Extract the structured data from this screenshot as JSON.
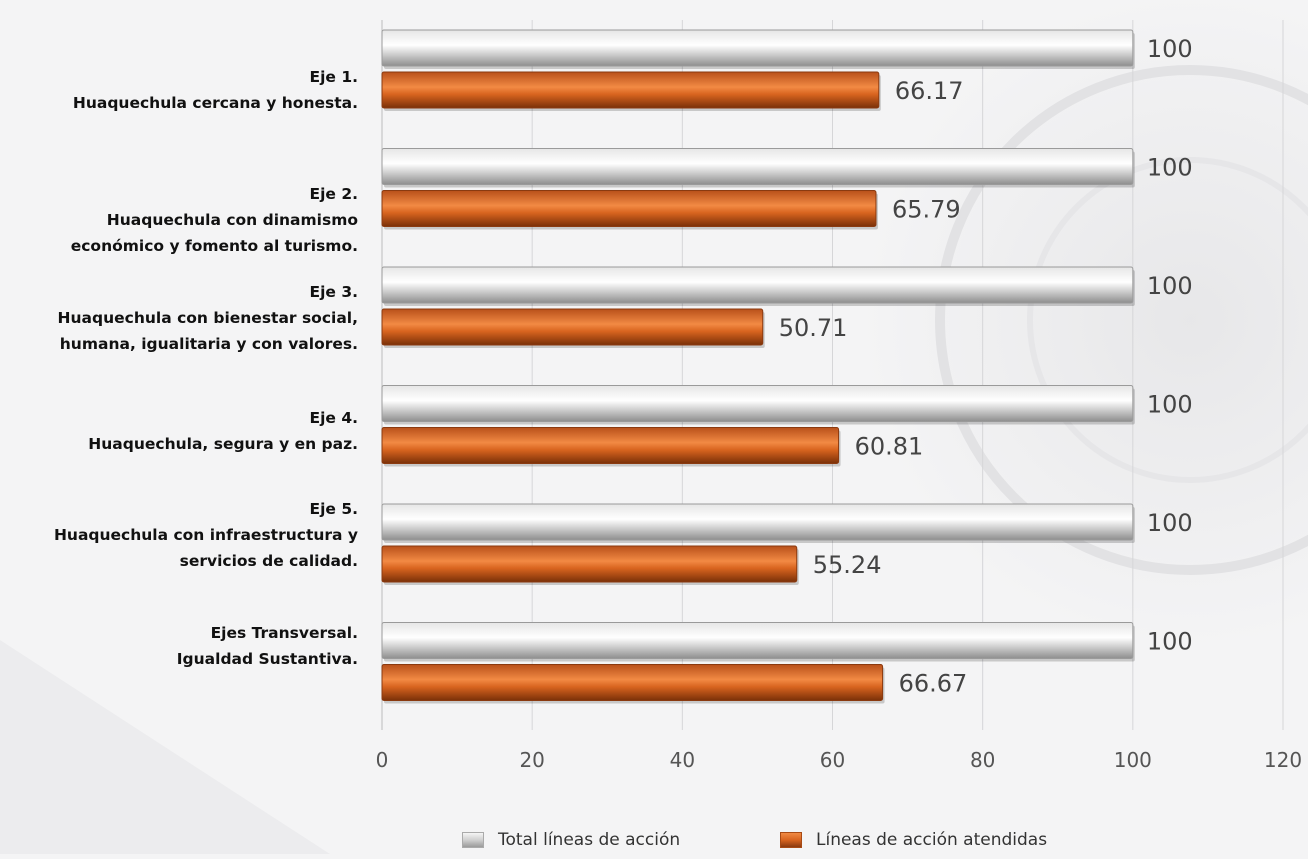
{
  "chart_data": {
    "type": "bar",
    "orientation": "horizontal",
    "categories": [
      [
        "Eje 1.",
        "Huaquechula cercana y honesta."
      ],
      [
        "Eje 2.",
        "Huaquechula con dinamismo",
        "económico y fomento al turismo."
      ],
      [
        "Eje 3.",
        "Huaquechula con bienestar social,",
        "humana, igualitaria y con valores."
      ],
      [
        "Eje 4.",
        "Huaquechula, segura y en paz."
      ],
      [
        "Eje 5.",
        "Huaquechula con infraestructura y",
        "servicios de calidad."
      ],
      [
        "Ejes Transversal.",
        "Igualdad Sustantiva."
      ]
    ],
    "series": [
      {
        "name": "Total líneas de acción",
        "values": [
          100,
          100,
          100,
          100,
          100,
          100
        ],
        "color": "#c9c9c9"
      },
      {
        "name": "Líneas de acción atendidas",
        "values": [
          66.17,
          65.79,
          50.71,
          60.81,
          55.24,
          66.67
        ],
        "color": "#d0631c"
      }
    ],
    "value_labels": [
      [
        "100",
        "100",
        "100",
        "100",
        "100",
        "100"
      ],
      [
        "66.17",
        "65.79",
        "50.71",
        "60.81",
        "55.24",
        "66.67"
      ]
    ],
    "xlim": [
      0,
      120
    ],
    "xticks": [
      "0",
      "20",
      "40",
      "60",
      "80",
      "100",
      "120"
    ],
    "grid": "vertical",
    "legend_position": "bottom",
    "title": "",
    "xlabel": "",
    "ylabel": ""
  }
}
